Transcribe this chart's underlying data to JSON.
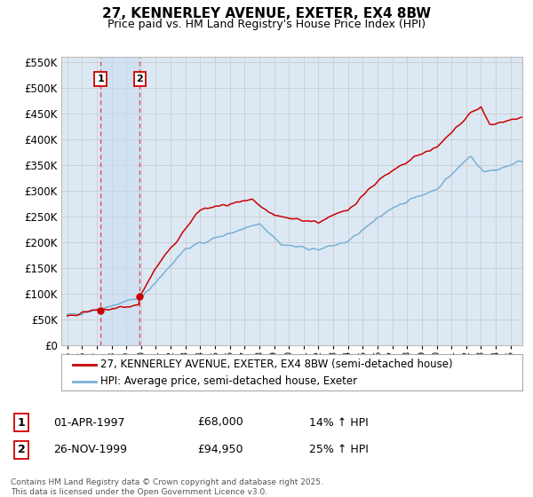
{
  "title": "27, KENNERLEY AVENUE, EXETER, EX4 8BW",
  "subtitle": "Price paid vs. HM Land Registry's House Price Index (HPI)",
  "legend_line1": "27, KENNERLEY AVENUE, EXETER, EX4 8BW (semi-detached house)",
  "legend_line2": "HPI: Average price, semi-detached house, Exeter",
  "transaction1_label": "1",
  "transaction1_date": "01-APR-1997",
  "transaction1_price": "£68,000",
  "transaction1_hpi": "14% ↑ HPI",
  "transaction2_label": "2",
  "transaction2_date": "26-NOV-1999",
  "transaction2_price": "£94,950",
  "transaction2_hpi": "25% ↑ HPI",
  "footer": "Contains HM Land Registry data © Crown copyright and database right 2025.\nThis data is licensed under the Open Government Licence v3.0.",
  "red_line_color": "#cc0000",
  "blue_line_color": "#7ab0d4",
  "background_color": "#dce9f5",
  "vline_color": "#dd4444",
  "vfill_color": "#c8ddf0",
  "grid_color": "#cccccc",
  "vline1_x": 1997.25,
  "vline2_x": 1999.9,
  "marker1_x": 1997.25,
  "marker1_y": 68000,
  "marker2_x": 1999.9,
  "marker2_y": 94950,
  "ylim_max": 560000,
  "xlim_min": 1994.6,
  "xlim_max": 2025.8,
  "ytick_step": 50000,
  "xticks": [
    1995,
    1996,
    1997,
    1998,
    1999,
    2000,
    2001,
    2002,
    2003,
    2004,
    2005,
    2006,
    2007,
    2008,
    2009,
    2010,
    2011,
    2012,
    2013,
    2014,
    2015,
    2016,
    2017,
    2018,
    2019,
    2020,
    2021,
    2022,
    2023,
    2024,
    2025
  ]
}
